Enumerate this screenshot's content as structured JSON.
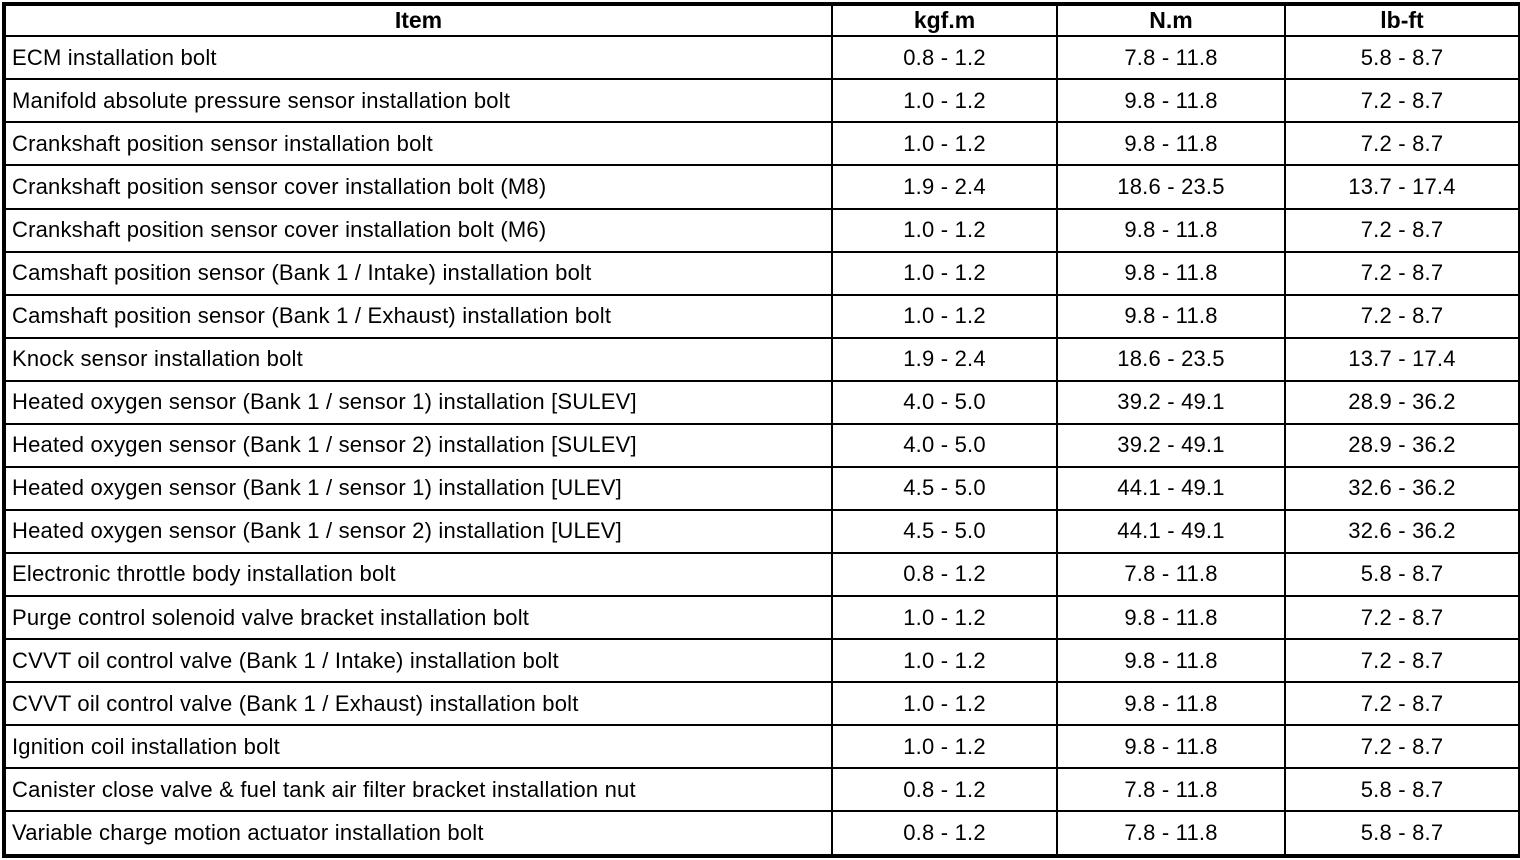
{
  "table": {
    "columns": [
      "Item",
      "kgf.m",
      "N.m",
      "lb-ft"
    ],
    "rows": [
      [
        "ECM installation bolt",
        "0.8 - 1.2",
        "7.8 - 11.8",
        "5.8 - 8.7"
      ],
      [
        "Manifold absolute pressure sensor installation bolt",
        "1.0 - 1.2",
        "9.8 - 11.8",
        "7.2 - 8.7"
      ],
      [
        "Crankshaft position sensor installation bolt",
        "1.0 - 1.2",
        "9.8 - 11.8",
        "7.2 - 8.7"
      ],
      [
        "Crankshaft position sensor cover installation bolt (M8)",
        "1.9 - 2.4",
        "18.6 - 23.5",
        "13.7 - 17.4"
      ],
      [
        "Crankshaft position sensor cover installation bolt (M6)",
        "1.0 - 1.2",
        "9.8 - 11.8",
        "7.2 - 8.7"
      ],
      [
        "Camshaft position sensor (Bank 1 / Intake) installation bolt",
        "1.0 - 1.2",
        "9.8 - 11.8",
        "7.2 - 8.7"
      ],
      [
        "Camshaft position sensor (Bank 1 / Exhaust) installation bolt",
        "1.0 - 1.2",
        "9.8 - 11.8",
        "7.2 - 8.7"
      ],
      [
        "Knock sensor installation bolt",
        "1.9 - 2.4",
        "18.6 - 23.5",
        "13.7 - 17.4"
      ],
      [
        "Heated oxygen sensor (Bank 1 / sensor 1) installation [SULEV]",
        "4.0 - 5.0",
        "39.2 - 49.1",
        "28.9 - 36.2"
      ],
      [
        "Heated oxygen sensor (Bank 1 / sensor 2) installation [SULEV]",
        "4.0 - 5.0",
        "39.2 - 49.1",
        "28.9 - 36.2"
      ],
      [
        "Heated oxygen sensor (Bank 1 / sensor 1) installation [ULEV]",
        "4.5 - 5.0",
        "44.1 - 49.1",
        "32.6 - 36.2"
      ],
      [
        "Heated oxygen sensor (Bank 1 / sensor 2) installation [ULEV]",
        "4.5 - 5.0",
        "44.1 - 49.1",
        "32.6 - 36.2"
      ],
      [
        "Electronic throttle body installation bolt",
        "0.8 - 1.2",
        "7.8 - 11.8",
        "5.8 - 8.7"
      ],
      [
        "Purge control solenoid valve bracket installation bolt",
        "1.0 - 1.2",
        "9.8 - 11.8",
        "7.2 - 8.7"
      ],
      [
        "CVVT oil control valve (Bank 1 / Intake) installation bolt",
        "1.0 - 1.2",
        "9.8 - 11.8",
        "7.2 - 8.7"
      ],
      [
        "CVVT oil control valve (Bank 1 / Exhaust) installation bolt",
        "1.0 - 1.2",
        "9.8 - 11.8",
        "7.2 - 8.7"
      ],
      [
        "Ignition coil installation bolt",
        "1.0 - 1.2",
        "9.8 - 11.8",
        "7.2 - 8.7"
      ],
      [
        "Canister close valve & fuel tank air filter bracket installation nut",
        "0.8 - 1.2",
        "7.8 - 11.8",
        "5.8 - 8.7"
      ],
      [
        "Variable charge motion actuator installation bolt",
        "0.8 - 1.2",
        "7.8 - 11.8",
        "5.8 - 8.7"
      ]
    ],
    "colors": {
      "border": "#000000",
      "text": "#000000",
      "background": "#ffffff"
    }
  }
}
